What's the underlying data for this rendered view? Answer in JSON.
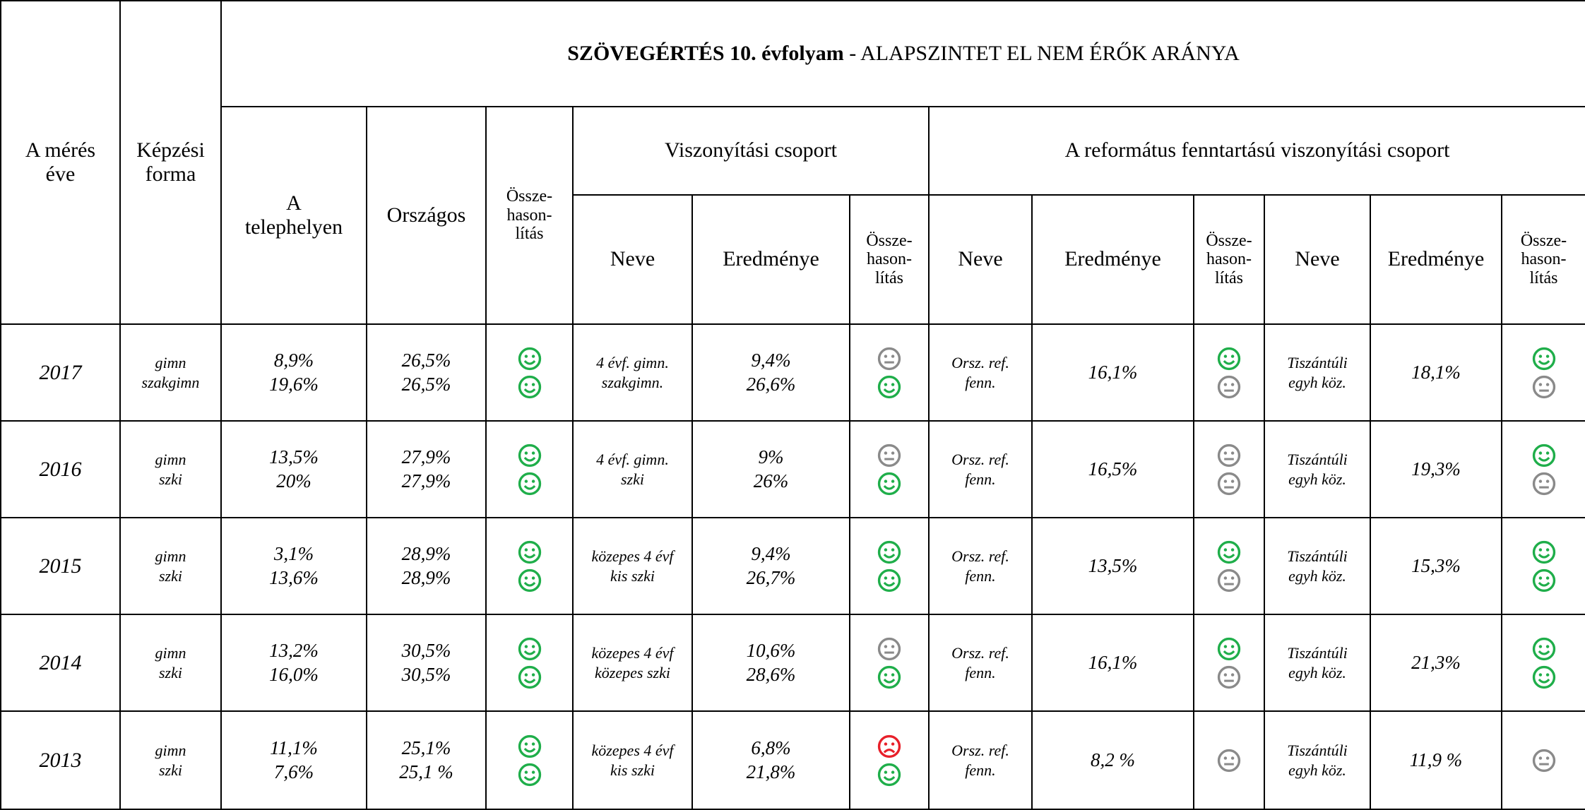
{
  "header": {
    "title_bold": "SZÖVEGÉRTÉS 10. évfolyam",
    "title_rest": " - ALAPSZINTET EL NEM ÉRŐK ARÁNYA",
    "year": "A mérés\néve",
    "form": "Képzési\nforma",
    "site": "A\ntelephelyen",
    "national": "Országos",
    "compare": "Össze-\nhason-\nlítás",
    "group": {
      "label": "Viszonyítási csoport",
      "name": "Neve",
      "result": "Eredménye",
      "compare": "Össze-\nhason-\nlítás"
    },
    "ref_group": {
      "label": "A református fenntartású viszonyítási csoport",
      "name": "Neve",
      "result": "Eredménye",
      "compare": "Össze-\nhason-\nlítás",
      "name2": "Neve",
      "result2": "Eredménye",
      "compare2": "Össze-\nhason-\nlítás"
    }
  },
  "rows": [
    [
      "2017",
      "gimn\nszakgimn",
      "8,9%\n19,6%",
      "26,5%\n26,5%",
      "4 évf. gimn.\nszakgimn.",
      "9,4%\n26,6%",
      "Orsz. ref.\nfenn.",
      "16,1%",
      "Tiszántúli\negyh köz.",
      "18,1%"
    ],
    [
      "2016",
      "gimn\nszki",
      "13,5%\n20%",
      "27,9%\n27,9%",
      "4 évf. gimn.\nszki",
      "9%\n26%",
      "Orsz. ref.\nfenn.",
      "16,5%",
      "Tiszántúli\negyh köz.",
      "19,3%"
    ],
    [
      "2015",
      "gimn\nszki",
      "3,1%\n13,6%",
      "28,9%\n28,9%",
      "közepes 4 évf\nkis szki",
      "9,4%\n26,7%",
      "Orsz. ref.\nfenn.",
      "13,5%",
      "Tiszántúli\negyh köz.",
      "15,3%"
    ],
    [
      "2014",
      "gimn\nszki",
      "13,2%\n16,0%",
      "30,5%\n30,5%",
      "közepes 4 évf\nközepes szki",
      "10,6%\n28,6%",
      "Orsz. ref.\nfenn.",
      "16,1%",
      "Tiszántúli\negyh köz.",
      "21,3%"
    ],
    [
      "2013",
      "gimn\nszki",
      "11,1%\n7,6%",
      "25,1%\n25,1 %",
      "közepes 4 évf\nkis szki",
      "6,8%\n21,8%",
      "Orsz. ref.\nfenn.",
      "8,2 %",
      "Tiszántúli\negyh köz.",
      "11,9 %"
    ]
  ]
}
